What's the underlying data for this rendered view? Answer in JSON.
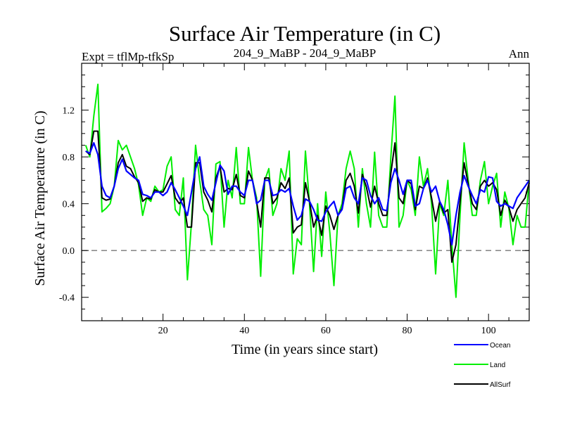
{
  "chart_data": {
    "type": "line",
    "title": "Surface Air Temperature (in C)",
    "subtitle_left": "Expt = tflMp-tfkSp",
    "subtitle_center": "204_9_MaBP - 204_9_MaBP",
    "subtitle_right": "Ann",
    "xlabel": "Time (in years since start)",
    "ylabel": "Surface Air Temperature (in C)",
    "xlim": [
      0,
      110
    ],
    "ylim": [
      -0.6,
      1.6
    ],
    "xticks": [
      20,
      40,
      60,
      80,
      100
    ],
    "yticks": [
      -0.4,
      0.0,
      0.4,
      0.8,
      1.2
    ],
    "ytick_labels": [
      "-0.4",
      "0.0",
      "0.4",
      "0.8",
      "1.2"
    ],
    "reference_line": 0.0,
    "legend_position": "bottom-right",
    "x": [
      1,
      2,
      3,
      4,
      5,
      6,
      7,
      8,
      9,
      10,
      11,
      12,
      13,
      14,
      15,
      16,
      17,
      18,
      19,
      20,
      21,
      22,
      23,
      24,
      25,
      26,
      27,
      28,
      29,
      30,
      31,
      32,
      33,
      34,
      35,
      36,
      37,
      38,
      39,
      40,
      41,
      42,
      43,
      44,
      45,
      46,
      47,
      48,
      49,
      50,
      51,
      52,
      53,
      54,
      55,
      56,
      57,
      58,
      59,
      60,
      61,
      62,
      63,
      64,
      65,
      66,
      67,
      68,
      69,
      70,
      71,
      72,
      73,
      74,
      75,
      76,
      77,
      78,
      79,
      80,
      81,
      82,
      83,
      84,
      85,
      86,
      87,
      88,
      89,
      90,
      91,
      92,
      93,
      94,
      95,
      96,
      97,
      98,
      99,
      100,
      101,
      102,
      103,
      104,
      105,
      106,
      107,
      108,
      109,
      110
    ],
    "series": [
      {
        "name": "Ocean",
        "color": "#0000ff",
        "values": [
          0.85,
          0.83,
          0.92,
          0.82,
          0.55,
          0.47,
          0.45,
          0.55,
          0.7,
          0.78,
          0.68,
          0.65,
          0.62,
          0.6,
          0.48,
          0.47,
          0.45,
          0.5,
          0.5,
          0.47,
          0.5,
          0.58,
          0.52,
          0.45,
          0.38,
          0.3,
          0.5,
          0.7,
          0.8,
          0.55,
          0.48,
          0.43,
          0.58,
          0.73,
          0.68,
          0.48,
          0.55,
          0.55,
          0.5,
          0.47,
          0.6,
          0.6,
          0.4,
          0.43,
          0.6,
          0.6,
          0.47,
          0.48,
          0.52,
          0.5,
          0.53,
          0.38,
          0.26,
          0.3,
          0.44,
          0.42,
          0.35,
          0.26,
          0.25,
          0.33,
          0.38,
          0.42,
          0.3,
          0.35,
          0.53,
          0.55,
          0.45,
          0.4,
          0.62,
          0.6,
          0.47,
          0.4,
          0.45,
          0.35,
          0.34,
          0.58,
          0.7,
          0.6,
          0.48,
          0.6,
          0.6,
          0.38,
          0.4,
          0.53,
          0.6,
          0.5,
          0.55,
          0.42,
          0.35,
          0.22,
          0.05,
          0.3,
          0.5,
          0.64,
          0.55,
          0.47,
          0.4,
          0.52,
          0.5,
          0.63,
          0.62,
          0.42,
          0.38,
          0.4,
          0.38,
          0.36,
          0.45,
          0.5,
          0.55,
          0.6
        ]
      },
      {
        "name": "Land",
        "color": "#00ee00",
        "values": [
          0.9,
          0.8,
          1.15,
          1.42,
          0.33,
          0.36,
          0.4,
          0.55,
          0.94,
          0.86,
          0.9,
          0.8,
          0.7,
          0.56,
          0.3,
          0.45,
          0.42,
          0.55,
          0.5,
          0.52,
          0.72,
          0.8,
          0.35,
          0.3,
          0.62,
          -0.25,
          0.24,
          0.9,
          0.6,
          0.35,
          0.3,
          0.05,
          0.74,
          0.76,
          0.2,
          0.6,
          0.45,
          0.88,
          0.4,
          0.4,
          0.88,
          0.6,
          0.45,
          -0.22,
          0.6,
          0.7,
          0.3,
          0.4,
          0.7,
          0.6,
          0.85,
          -0.2,
          0.1,
          0.05,
          0.85,
          0.4,
          -0.18,
          0.4,
          -0.05,
          0.5,
          0.15,
          -0.3,
          0.3,
          0.4,
          0.7,
          0.85,
          0.7,
          0.2,
          0.7,
          0.4,
          0.2,
          0.84,
          0.3,
          0.2,
          0.2,
          0.8,
          1.32,
          0.2,
          0.3,
          0.6,
          0.52,
          0.3,
          0.8,
          0.55,
          0.7,
          0.4,
          -0.2,
          0.4,
          0.3,
          0.6,
          0.05,
          -0.4,
          0.3,
          0.92,
          0.6,
          0.3,
          0.3,
          0.6,
          0.76,
          0.4,
          0.55,
          0.66,
          0.2,
          0.5,
          0.36,
          0.05,
          0.3,
          0.2,
          0.2,
          0.6
        ]
      },
      {
        "name": "AllSurf",
        "color": "#000000",
        "values": [
          0.85,
          0.82,
          1.02,
          1.02,
          0.45,
          0.43,
          0.44,
          0.55,
          0.75,
          0.82,
          0.72,
          0.7,
          0.63,
          0.58,
          0.42,
          0.45,
          0.44,
          0.52,
          0.5,
          0.5,
          0.57,
          0.64,
          0.45,
          0.4,
          0.45,
          0.2,
          0.2,
          0.75,
          0.75,
          0.5,
          0.43,
          0.33,
          0.62,
          0.72,
          0.5,
          0.53,
          0.52,
          0.65,
          0.47,
          0.45,
          0.68,
          0.6,
          0.42,
          0.2,
          0.62,
          0.62,
          0.4,
          0.45,
          0.58,
          0.53,
          0.62,
          0.15,
          0.2,
          0.22,
          0.58,
          0.42,
          0.2,
          0.3,
          0.13,
          0.38,
          0.3,
          0.18,
          0.3,
          0.36,
          0.6,
          0.66,
          0.55,
          0.32,
          0.65,
          0.54,
          0.37,
          0.55,
          0.4,
          0.3,
          0.3,
          0.66,
          0.92,
          0.45,
          0.4,
          0.6,
          0.57,
          0.35,
          0.55,
          0.53,
          0.62,
          0.45,
          0.25,
          0.42,
          0.32,
          0.35,
          -0.1,
          0.05,
          0.42,
          0.75,
          0.57,
          0.4,
          0.35,
          0.55,
          0.6,
          0.55,
          0.58,
          0.52,
          0.3,
          0.43,
          0.37,
          0.25,
          0.35,
          0.4,
          0.45,
          0.58
        ]
      }
    ]
  }
}
